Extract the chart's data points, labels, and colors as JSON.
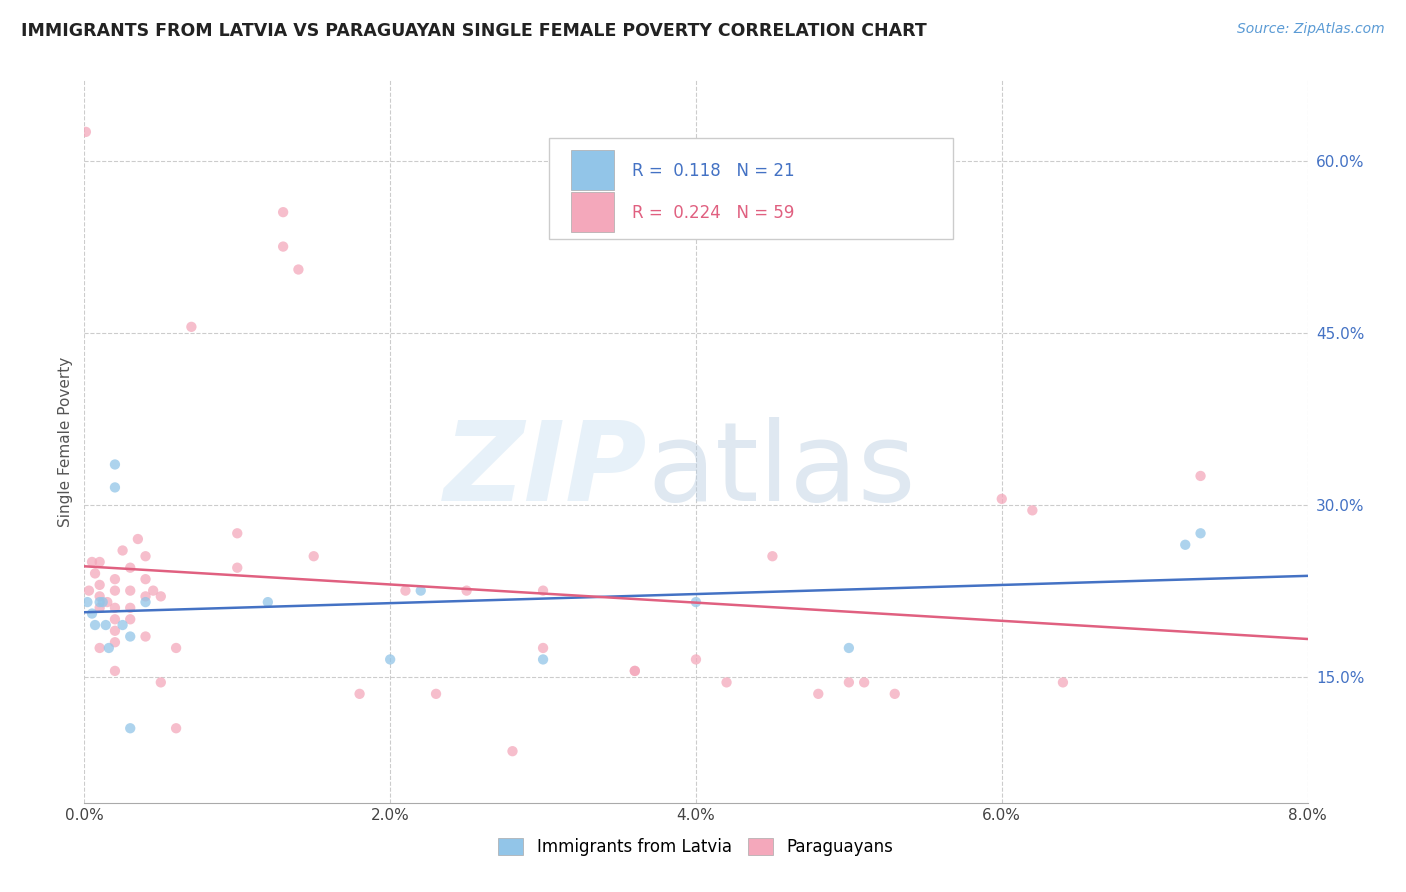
{
  "title": "IMMIGRANTS FROM LATVIA VS PARAGUAYAN SINGLE FEMALE POVERTY CORRELATION CHART",
  "source": "Source: ZipAtlas.com",
  "ylabel": "Single Female Poverty",
  "yticks": [
    0.15,
    0.3,
    0.45,
    0.6
  ],
  "ytick_labels": [
    "15.0%",
    "30.0%",
    "45.0%",
    "60.0%"
  ],
  "xmin": 0.0,
  "xmax": 0.08,
  "ymin": 0.04,
  "ymax": 0.67,
  "legend_labels": [
    "Immigrants from Latvia",
    "Paraguayans"
  ],
  "R_latvia": 0.118,
  "N_latvia": 21,
  "R_paraguay": 0.224,
  "N_paraguay": 59,
  "color_latvia": "#92C5E8",
  "color_paraguay": "#F4A8BB",
  "color_line_latvia": "#4472C4",
  "color_line_paraguay": "#E06080",
  "background_color": "#FFFFFF",
  "marker_size": 55,
  "latvia_x": [
    0.0002,
    0.0005,
    0.0007,
    0.001,
    0.0012,
    0.0014,
    0.0016,
    0.002,
    0.002,
    0.0025,
    0.003,
    0.003,
    0.004,
    0.012,
    0.02,
    0.022,
    0.03,
    0.04,
    0.05,
    0.072,
    0.073
  ],
  "latvia_y": [
    0.215,
    0.205,
    0.195,
    0.215,
    0.215,
    0.195,
    0.175,
    0.335,
    0.315,
    0.195,
    0.185,
    0.105,
    0.215,
    0.215,
    0.165,
    0.225,
    0.165,
    0.215,
    0.175,
    0.265,
    0.275
  ],
  "paraguay_x": [
    0.0001,
    0.0003,
    0.0005,
    0.0007,
    0.001,
    0.001,
    0.001,
    0.001,
    0.001,
    0.0015,
    0.002,
    0.002,
    0.002,
    0.002,
    0.002,
    0.002,
    0.002,
    0.0025,
    0.003,
    0.003,
    0.003,
    0.003,
    0.0035,
    0.004,
    0.004,
    0.004,
    0.004,
    0.0045,
    0.005,
    0.005,
    0.006,
    0.006,
    0.007,
    0.01,
    0.01,
    0.013,
    0.013,
    0.014,
    0.015,
    0.018,
    0.021,
    0.023,
    0.025,
    0.028,
    0.03,
    0.03,
    0.036,
    0.036,
    0.04,
    0.042,
    0.045,
    0.048,
    0.05,
    0.051,
    0.053,
    0.06,
    0.062,
    0.064,
    0.073
  ],
  "paraguay_y": [
    0.625,
    0.225,
    0.25,
    0.24,
    0.25,
    0.23,
    0.22,
    0.21,
    0.175,
    0.215,
    0.235,
    0.225,
    0.21,
    0.2,
    0.19,
    0.18,
    0.155,
    0.26,
    0.245,
    0.225,
    0.21,
    0.2,
    0.27,
    0.255,
    0.235,
    0.22,
    0.185,
    0.225,
    0.22,
    0.145,
    0.175,
    0.105,
    0.455,
    0.275,
    0.245,
    0.555,
    0.525,
    0.505,
    0.255,
    0.135,
    0.225,
    0.135,
    0.225,
    0.085,
    0.225,
    0.175,
    0.155,
    0.155,
    0.165,
    0.145,
    0.255,
    0.135,
    0.145,
    0.145,
    0.135,
    0.305,
    0.295,
    0.145,
    0.325
  ]
}
